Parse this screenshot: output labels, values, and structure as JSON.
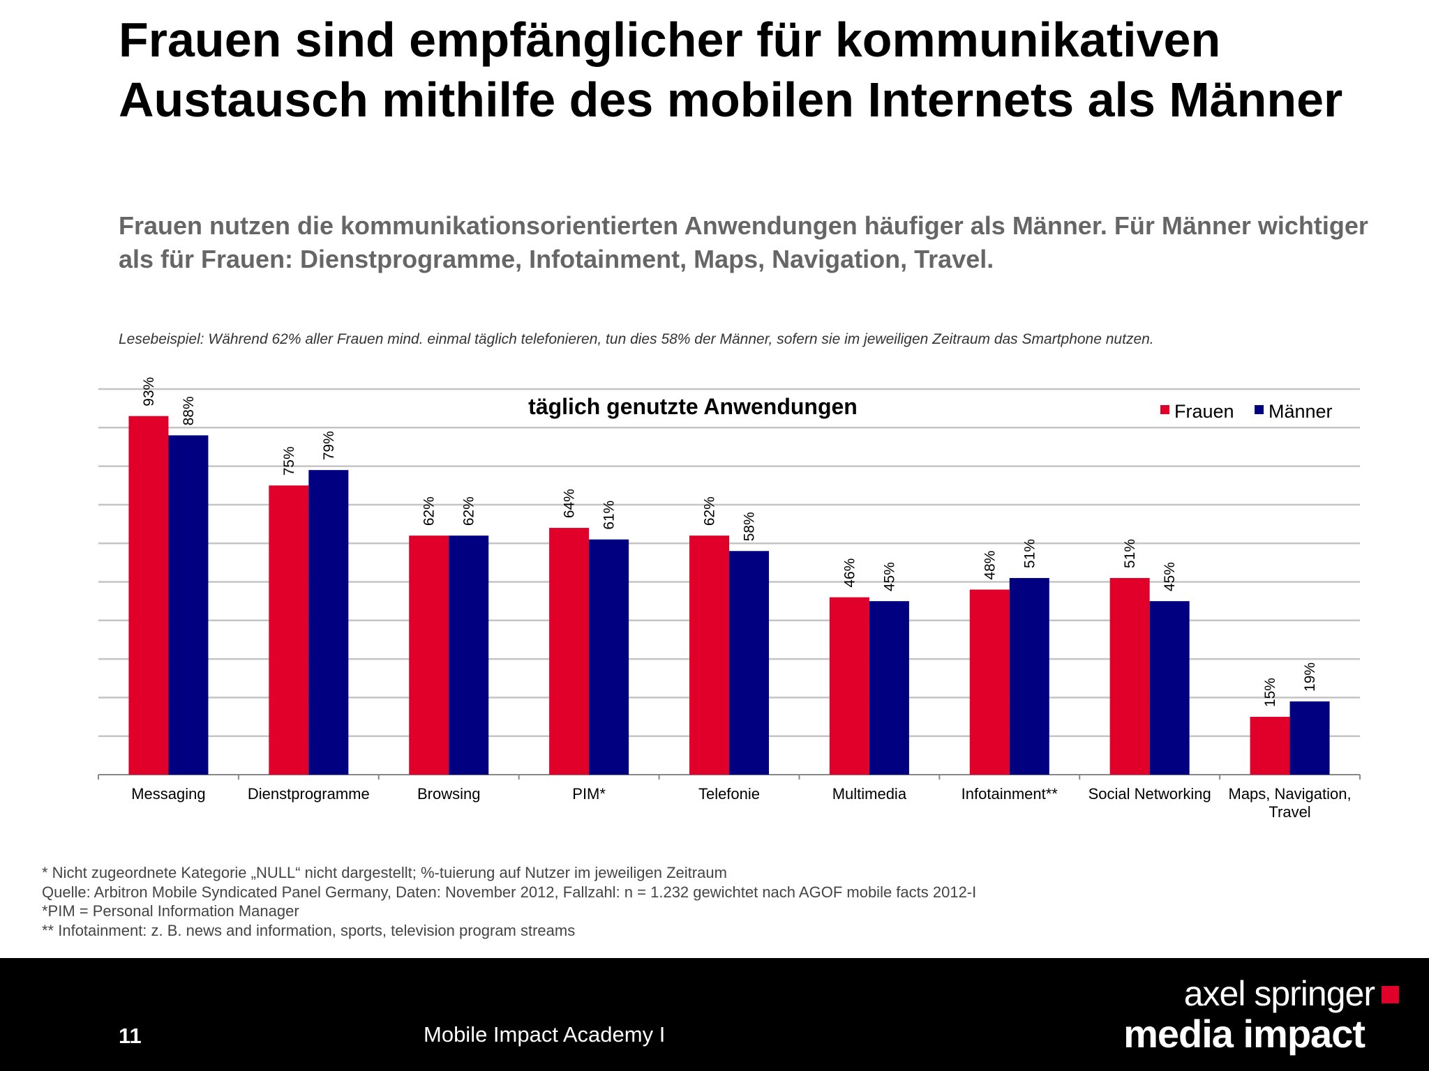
{
  "title": "Frauen sind empfänglicher für kommunikativen Austausch mithilfe des mobilen Internets als Männer",
  "subtitle": "Frauen nutzen die kommunikationsorientierten Anwendungen häufiger als Männer. Für Männer wichtiger als für Frauen: Dienstprogramme, Infotainment, Maps, Navigation, Travel.",
  "reading_example": "Lesebeispiel:  Während 62% aller Frauen mind. einmal täglich telefonieren, tun dies  58% der Männer, sofern sie im jeweiligen Zeitraum das Smartphone nutzen.",
  "chart_data": {
    "type": "bar",
    "title": "täglich genutzte Anwendungen",
    "categories": [
      "Messaging",
      "Dienstprogramme",
      "Browsing",
      "PIM*",
      "Telefonie",
      "Multimedia",
      "Infotainment**",
      "Social Networking",
      "Maps, Navigation, Travel"
    ],
    "series": [
      {
        "name": "Frauen",
        "color": "#E0002A",
        "values": [
          93,
          75,
          62,
          64,
          62,
          46,
          48,
          51,
          15
        ]
      },
      {
        "name": "Männer",
        "color": "#000080",
        "values": [
          88,
          79,
          62,
          61,
          58,
          45,
          51,
          45,
          19
        ]
      }
    ],
    "value_suffix": "%",
    "ylim": [
      0,
      100
    ],
    "grid": true,
    "y_tick_labels": false,
    "legend": "top-right",
    "data_label_rotation": "vertical"
  },
  "footnotes": [
    "* Nicht zugeordnete Kategorie „NULL“ nicht dargestellt; %-tuierung auf Nutzer im jeweiligen Zeitraum",
    "Quelle: Arbitron Mobile Syndicated Panel Germany, Daten: November 2012, Fallzahl: n = 1.232 gewichtet nach AGOF mobile facts 2012-I",
    "*PIM = Personal Information Manager",
    "** Infotainment: z. B. news and information, sports, television program streams"
  ],
  "footer": {
    "page_number": "11",
    "text": "Mobile Impact Academy I",
    "logo_line1": "axel springer",
    "logo_line2": "media impact",
    "logo_accent": "#E0002A"
  }
}
